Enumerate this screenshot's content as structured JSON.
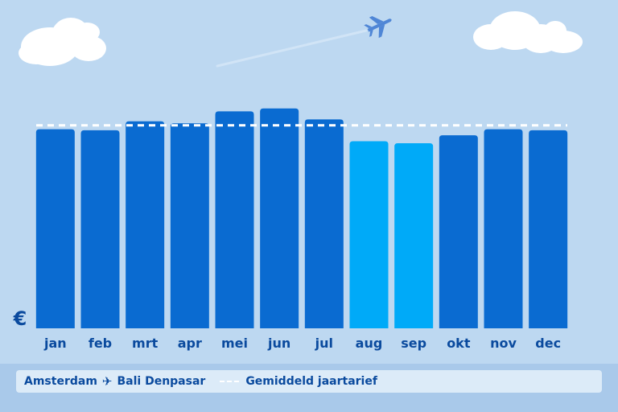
{
  "chart_data": {
    "type": "bar",
    "categories": [
      "jan",
      "feb",
      "mrt",
      "apr",
      "mei",
      "jun",
      "jul",
      "aug",
      "sep",
      "okt",
      "nov",
      "dec"
    ],
    "values": [
      100,
      99.5,
      104,
      103,
      109,
      110.5,
      105,
      94,
      93,
      97,
      100,
      99.5
    ],
    "average": 102,
    "ylim": [
      0,
      112
    ],
    "ylabel": "€",
    "highlight_categories": [
      "aug",
      "sep"
    ],
    "colors": {
      "bar": "#0a6bd1",
      "bar_highlight": "#00aaf8",
      "average_line": "#ffffff",
      "axis_labels": "#0a4a9e",
      "background": "#bdd8f1"
    }
  },
  "legend": {
    "origin": "Amsterdam",
    "destination": "Bali Denpasar",
    "average_label": "Gemiddeld jaartarief",
    "plane_icon": "airplane-icon"
  }
}
